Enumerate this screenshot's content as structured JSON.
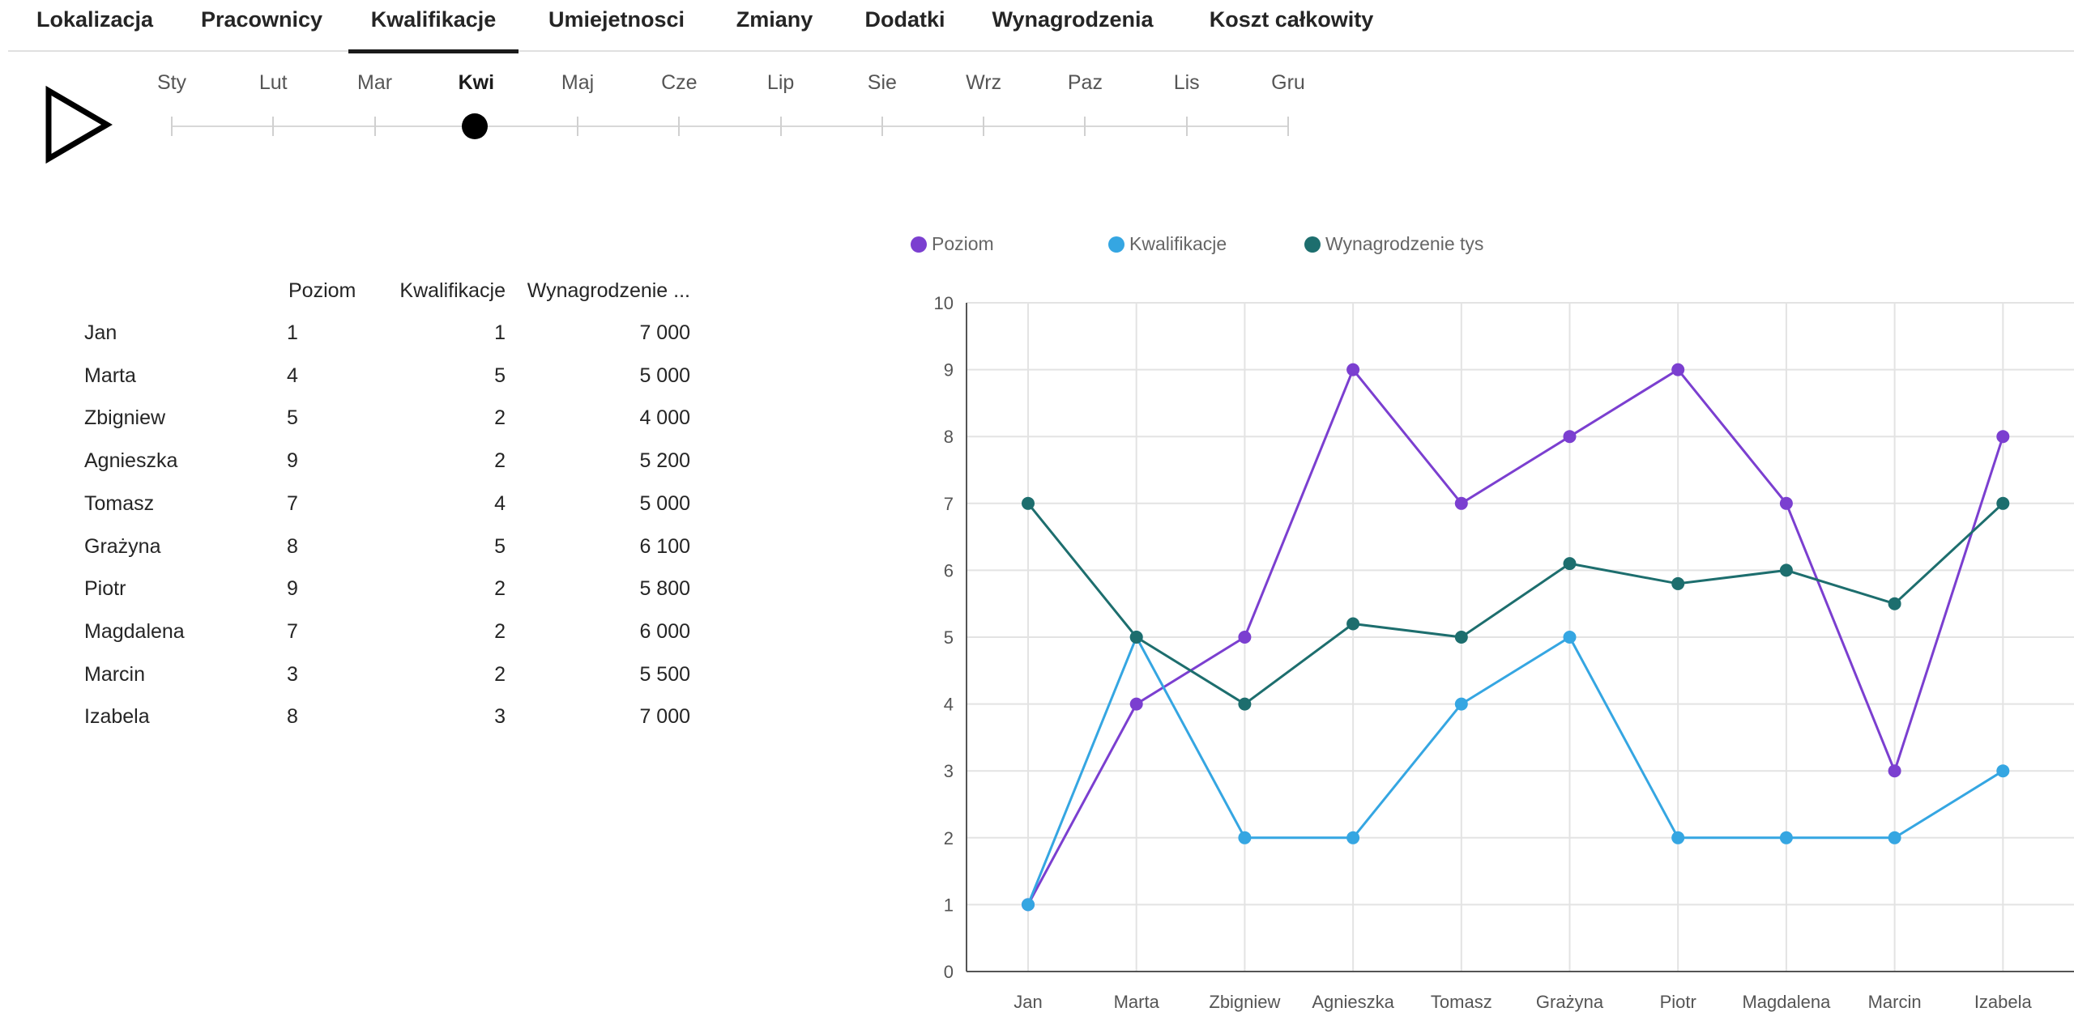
{
  "tabs": [
    {
      "label": "Lokalizacja",
      "active": false
    },
    {
      "label": "Pracownicy",
      "active": false
    },
    {
      "label": "Kwalifikacje",
      "active": true
    },
    {
      "label": "Umiejetnosci",
      "active": false
    },
    {
      "label": "Zmiany",
      "active": false
    },
    {
      "label": "Dodatki",
      "active": false
    },
    {
      "label": "Wynagrodzenia",
      "active": false
    },
    {
      "label": "Koszt całkowity",
      "active": false
    }
  ],
  "timeline": {
    "play_icon": "play-icon",
    "months": [
      "Sty",
      "Lut",
      "Mar",
      "Kwi",
      "Maj",
      "Cze",
      "Lip",
      "Sie",
      "Wrz",
      "Paz",
      "Lis",
      "Gru"
    ],
    "selected": "Kwi"
  },
  "table": {
    "headers": {
      "name": "",
      "poziom": "Poziom",
      "kwalifikacje": "Kwalifikacje",
      "wynagrodzenie": "Wynagrodzenie ..."
    },
    "rows": [
      {
        "name": "Jan",
        "poziom": "1",
        "kwalifikacje": "1",
        "wynagrodzenie": "7 000"
      },
      {
        "name": "Marta",
        "poziom": "4",
        "kwalifikacje": "5",
        "wynagrodzenie": "5 000"
      },
      {
        "name": "Zbigniew",
        "poziom": "5",
        "kwalifikacje": "2",
        "wynagrodzenie": "4 000"
      },
      {
        "name": "Agnieszka",
        "poziom": "9",
        "kwalifikacje": "2",
        "wynagrodzenie": "5 200"
      },
      {
        "name": "Tomasz",
        "poziom": "7",
        "kwalifikacje": "4",
        "wynagrodzenie": "5 000"
      },
      {
        "name": "Grażyna",
        "poziom": "8",
        "kwalifikacje": "5",
        "wynagrodzenie": "6 100"
      },
      {
        "name": "Piotr",
        "poziom": "9",
        "kwalifikacje": "2",
        "wynagrodzenie": "5 800"
      },
      {
        "name": "Magdalena",
        "poziom": "7",
        "kwalifikacje": "2",
        "wynagrodzenie": "6 000"
      },
      {
        "name": "Marcin",
        "poziom": "3",
        "kwalifikacje": "2",
        "wynagrodzenie": "5 500"
      },
      {
        "name": "Izabela",
        "poziom": "8",
        "kwalifikacje": "3",
        "wynagrodzenie": "7 000"
      }
    ]
  },
  "colors": {
    "poziom": "#7b3fd0",
    "kwalifikacje": "#35a6e2",
    "wynagrodzenie": "#1d6e6e",
    "grid": "#e3e3e3",
    "axis": "#555555"
  },
  "chart_data": {
    "type": "line",
    "categories": [
      "Jan",
      "Marta",
      "Zbigniew",
      "Agnieszka",
      "Tomasz",
      "Grażyna",
      "Piotr",
      "Magdalena",
      "Marcin",
      "Izabela"
    ],
    "series": [
      {
        "name": "Poziom",
        "values": [
          1,
          4,
          5,
          9,
          7,
          8,
          9,
          7,
          3,
          8
        ]
      },
      {
        "name": "Kwalifikacje",
        "values": [
          1,
          5,
          2,
          2,
          4,
          5,
          2,
          2,
          2,
          3
        ]
      },
      {
        "name": "Wynagrodzenie tys",
        "values": [
          7,
          5,
          4,
          5.2,
          5,
          6.1,
          5.8,
          6,
          5.5,
          7
        ]
      }
    ],
    "ylim": [
      0,
      10
    ],
    "yticks": [
      0,
      1,
      2,
      3,
      4,
      5,
      6,
      7,
      8,
      9,
      10
    ],
    "title": "",
    "xlabel": "",
    "ylabel": "",
    "grid": true,
    "legend": "top-left"
  }
}
